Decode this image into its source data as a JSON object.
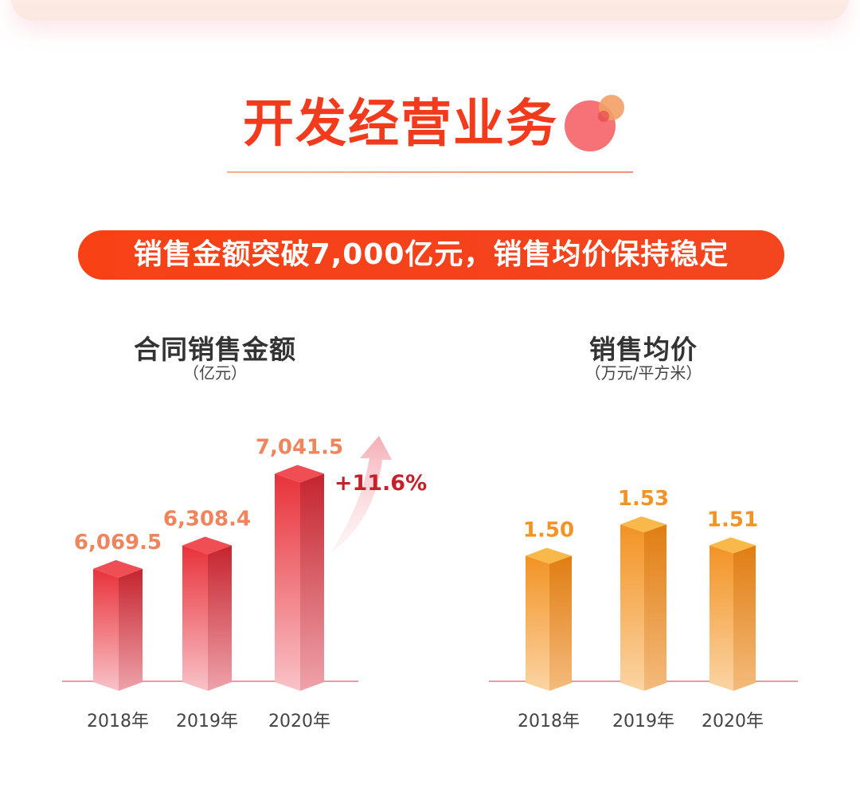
{
  "header": {
    "section_title": "开发经营业务",
    "banner_text": "销售金额突破7,000亿元，销售均价保持稳定"
  },
  "colors": {
    "primary": "#f23a1c",
    "red_bar": "#e8323a",
    "orange_bar": "#f29324",
    "red_label": "#f0845c",
    "orange_label": "#f29324",
    "growth": "#c8202a"
  },
  "chart_data": [
    {
      "type": "bar",
      "title": "合同销售金额",
      "unit": "（亿元）",
      "categories": [
        "2018年",
        "2019年",
        "2020年"
      ],
      "values": [
        6069.5,
        6308.4,
        7041.5
      ],
      "value_labels": [
        "6,069.5",
        "6,308.4",
        "7,041.5"
      ],
      "growth_label": "+11.6%",
      "ylim": [
        4920,
        7200
      ],
      "xlabel": "",
      "ylabel": "",
      "color": "red"
    },
    {
      "type": "bar",
      "title": "销售均价",
      "unit": "（万元/平方米）",
      "categories": [
        "2018年",
        "2019年",
        "2020年"
      ],
      "values": [
        1.5,
        1.53,
        1.51
      ],
      "value_labels": [
        "1.50",
        "1.53",
        "1.51"
      ],
      "ylim": [
        1.38,
        1.54
      ],
      "xlabel": "",
      "ylabel": "",
      "color": "orange"
    }
  ]
}
